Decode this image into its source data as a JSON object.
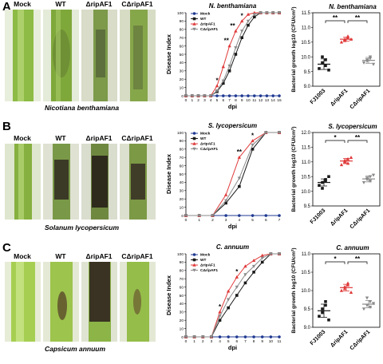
{
  "colors": {
    "mock": "#1f3a93",
    "wt": "#1a1a1a",
    "mutant": "#e03a3a",
    "complement": "#8a8a8a",
    "stem_green": "#7fae3c"
  },
  "stem_labels": [
    "Mock",
    "WT",
    "ΔripAF1",
    "CΔripAF1"
  ],
  "panels": [
    {
      "letter": "A",
      "species_label": "Nicotiana benthamiana"
    },
    {
      "letter": "B",
      "species_label": "Solanum  lycopersicum"
    },
    {
      "letter": "C",
      "species_label": "Capsicum annuum"
    }
  ],
  "chart_data": [
    {
      "type": "line",
      "panel": "A",
      "title": "N. benthamiana",
      "xlabel": "dpi",
      "ylabel": "Disease Index",
      "xlim": [
        0,
        15
      ],
      "ylim": [
        0,
        100
      ],
      "xticks": [
        0,
        1,
        2,
        3,
        4,
        5,
        6,
        7,
        8,
        9,
        10,
        11,
        12,
        13,
        14,
        15
      ],
      "yticks": [
        0,
        10,
        20,
        30,
        40,
        50,
        60,
        70,
        80,
        90,
        100
      ],
      "legend": [
        "Mock",
        "WT",
        "ΔripAF1",
        "CΔripAF1"
      ],
      "significance": [
        {
          "x": 5,
          "label": "*"
        },
        {
          "x": 6.5,
          "label": "**"
        },
        {
          "x": 7.5,
          "label": "**"
        },
        {
          "x": 9,
          "label": "*"
        }
      ],
      "series": [
        {
          "name": "Mock",
          "x": [
            0,
            1,
            2,
            3,
            4,
            5,
            6,
            7,
            8,
            9,
            10,
            11,
            12,
            13,
            14,
            15
          ],
          "values": [
            0,
            0,
            0,
            0,
            0,
            0,
            0,
            0,
            0,
            0,
            0,
            0,
            0,
            0,
            0,
            0
          ]
        },
        {
          "name": "WT",
          "x": [
            0,
            1,
            2,
            3,
            4,
            5,
            6,
            7,
            8,
            9,
            10,
            11,
            12,
            13,
            14,
            15
          ],
          "values": [
            0,
            0,
            0,
            0,
            0,
            5,
            15,
            30,
            50,
            70,
            85,
            95,
            100,
            100,
            100,
            100
          ]
        },
        {
          "name": "ΔripAF1",
          "x": [
            0,
            1,
            2,
            3,
            4,
            5,
            6,
            7,
            8,
            9,
            10,
            11,
            12,
            13,
            14,
            15
          ],
          "values": [
            0,
            0,
            0,
            0,
            0,
            12,
            35,
            60,
            78,
            90,
            98,
            100,
            100,
            100,
            100,
            100
          ]
        },
        {
          "name": "CΔripAF1",
          "x": [
            0,
            1,
            2,
            3,
            4,
            5,
            6,
            7,
            8,
            9,
            10,
            11,
            12,
            13,
            14,
            15
          ],
          "values": [
            0,
            0,
            0,
            0,
            0,
            6,
            18,
            36,
            58,
            78,
            90,
            98,
            100,
            100,
            100,
            100
          ]
        }
      ]
    },
    {
      "type": "scatter",
      "panel": "A",
      "title": "N. benthamiana",
      "ylabel": "Bacterial growth log10 (CFU/cm²)",
      "ylim": [
        9.0,
        11.5
      ],
      "yticks": [
        9.0,
        9.5,
        10.0,
        10.5,
        11.0,
        11.5
      ],
      "categories": [
        "FJ1003",
        "ΔripAF1",
        "CΔripAF1"
      ],
      "significance": [
        {
          "pair": [
            0,
            1
          ],
          "label": "**"
        },
        {
          "pair": [
            1,
            2
          ],
          "label": "**"
        }
      ],
      "series": [
        {
          "name": "FJ1003",
          "values": [
            9.6,
            9.8,
            9.9,
            10.0,
            9.7,
            9.55
          ],
          "mean": 9.75,
          "sd": 0.18
        },
        {
          "name": "ΔripAF1",
          "values": [
            10.5,
            10.6,
            10.7,
            10.55,
            10.65,
            10.6
          ],
          "mean": 10.6,
          "sd": 0.07
        },
        {
          "name": "CΔripAF1",
          "values": [
            9.8,
            9.9,
            10.0,
            9.85,
            9.95,
            9.75
          ],
          "mean": 9.88,
          "sd": 0.1
        }
      ]
    },
    {
      "type": "line",
      "panel": "B",
      "title": "S. lycopersicum",
      "xlabel": "dpi",
      "ylabel": "Disease Index",
      "xlim": [
        0,
        7
      ],
      "ylim": [
        0,
        100
      ],
      "xticks": [
        0,
        1,
        2,
        3,
        4,
        5,
        6,
        7
      ],
      "yticks": [
        0,
        10,
        20,
        30,
        40,
        50,
        60,
        70,
        80,
        90,
        100
      ],
      "legend": [
        "Mock",
        "WT",
        "ΔripAF1",
        "CΔripAF1"
      ],
      "significance": [
        {
          "x": 4,
          "label": "**"
        },
        {
          "x": 5,
          "label": "*"
        }
      ],
      "series": [
        {
          "name": "Mock",
          "x": [
            0,
            1,
            2,
            3,
            4,
            5,
            6,
            7
          ],
          "values": [
            0,
            0,
            0,
            0,
            0,
            0,
            0,
            0
          ]
        },
        {
          "name": "WT",
          "x": [
            0,
            1,
            2,
            3,
            4,
            5,
            6,
            7
          ],
          "values": [
            0,
            0,
            0,
            15,
            35,
            80,
            100,
            100
          ]
        },
        {
          "name": "ΔripAF1",
          "x": [
            0,
            1,
            2,
            3,
            4,
            5,
            6,
            7
          ],
          "values": [
            0,
            0,
            0,
            25,
            70,
            90,
            100,
            100
          ]
        },
        {
          "name": "CΔripAF1",
          "x": [
            0,
            1,
            2,
            3,
            4,
            5,
            6,
            7
          ],
          "values": [
            0,
            0,
            0,
            18,
            45,
            85,
            100,
            100
          ]
        }
      ]
    },
    {
      "type": "scatter",
      "panel": "B",
      "title": "S. lycopersicum",
      "ylabel": "Bacterial growth log10 (CFU/cm²)",
      "ylim": [
        9.5,
        12.0
      ],
      "yticks": [
        9.5,
        10.0,
        10.5,
        11.0,
        11.5,
        12.0
      ],
      "categories": [
        "FJ1003",
        "ΔripAF1",
        "CΔripAF1"
      ],
      "significance": [
        {
          "pair": [
            0,
            1
          ],
          "label": "*"
        },
        {
          "pair": [
            1,
            2
          ],
          "label": "**"
        }
      ],
      "series": [
        {
          "name": "FJ1003",
          "values": [
            10.2,
            10.3,
            10.4,
            10.1,
            10.35,
            10.5
          ],
          "mean": 10.3,
          "sd": 0.12
        },
        {
          "name": "ΔripAF1",
          "values": [
            10.9,
            11.0,
            11.1,
            11.05,
            10.95,
            11.15
          ],
          "mean": 11.03,
          "sd": 0.09
        },
        {
          "name": "CΔripAF1",
          "values": [
            10.3,
            10.4,
            10.5,
            10.45,
            10.35,
            10.55
          ],
          "mean": 10.42,
          "sd": 0.1
        }
      ]
    },
    {
      "type": "line",
      "panel": "C",
      "title": "C. annuum",
      "xlabel": "dpi",
      "ylabel": "Disease Index",
      "xlim": [
        0,
        11
      ],
      "ylim": [
        0,
        100
      ],
      "xticks": [
        0,
        1,
        2,
        3,
        4,
        5,
        6,
        7,
        8,
        9,
        10,
        11
      ],
      "yticks": [
        0,
        10,
        20,
        30,
        40,
        50,
        60,
        70,
        80,
        90,
        100
      ],
      "legend": [
        "Mock",
        "WT",
        "ΔripAF1",
        "CΔripAF1"
      ],
      "significance": [
        {
          "x": 4,
          "label": "*"
        },
        {
          "x": 6,
          "label": "*"
        }
      ],
      "series": [
        {
          "name": "Mock",
          "x": [
            0,
            1,
            2,
            3,
            4,
            5,
            6,
            7,
            8,
            9,
            10,
            11
          ],
          "values": [
            0,
            0,
            0,
            0,
            0,
            0,
            0,
            0,
            0,
            0,
            0,
            0
          ]
        },
        {
          "name": "WT",
          "x": [
            0,
            1,
            2,
            3,
            4,
            5,
            6,
            7,
            8,
            9,
            10,
            11
          ],
          "values": [
            0,
            0,
            0,
            0,
            20,
            35,
            50,
            65,
            78,
            90,
            100,
            100
          ]
        },
        {
          "name": "ΔripAF1",
          "x": [
            0,
            1,
            2,
            3,
            4,
            5,
            6,
            7,
            8,
            9,
            10,
            11
          ],
          "values": [
            0,
            0,
            0,
            0,
            30,
            55,
            72,
            85,
            92,
            98,
            100,
            100
          ]
        },
        {
          "name": "CΔripAF1",
          "x": [
            0,
            1,
            2,
            3,
            4,
            5,
            6,
            7,
            8,
            9,
            10,
            11
          ],
          "values": [
            0,
            0,
            0,
            0,
            25,
            45,
            60,
            75,
            85,
            95,
            100,
            100
          ]
        }
      ]
    },
    {
      "type": "scatter",
      "panel": "C",
      "title": "C. annuum",
      "ylabel": "Bacterial growth log10 (CFU/cm²)",
      "ylim": [
        9.0,
        11.0
      ],
      "yticks": [
        9.0,
        9.5,
        10.0,
        10.5,
        11.0
      ],
      "categories": [
        "FJ1003",
        "ΔripAF1",
        "CΔripAF1"
      ],
      "significance": [
        {
          "pair": [
            0,
            1
          ],
          "label": "*"
        },
        {
          "pair": [
            1,
            2
          ],
          "label": "**"
        }
      ],
      "series": [
        {
          "name": "FJ1003",
          "values": [
            9.3,
            9.5,
            9.7,
            9.4,
            9.6,
            9.2
          ],
          "mean": 9.45,
          "sd": 0.18
        },
        {
          "name": "ΔripAF1",
          "values": [
            10.0,
            10.1,
            10.2,
            10.05,
            10.15,
            9.95
          ],
          "mean": 10.08,
          "sd": 0.09
        },
        {
          "name": "CΔripAF1",
          "values": [
            9.5,
            9.6,
            9.7,
            9.8,
            9.55,
            9.65
          ],
          "mean": 9.63,
          "sd": 0.1
        }
      ]
    }
  ]
}
